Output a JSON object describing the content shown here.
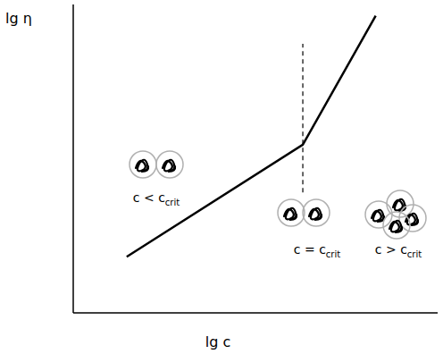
{
  "chart_data": {
    "type": "line",
    "x_label": "lg c",
    "y_label": "lg η",
    "x": [
      0.44,
      1.89,
      2.49
    ],
    "values": [
      1,
      3,
      5.3
    ],
    "color": "#000000",
    "xlim": [
      0,
      3
    ],
    "ylim": [
      0,
      5.5
    ],
    "xticks": [
      1,
      2
    ],
    "yticks": [
      1,
      2,
      3,
      4,
      5
    ],
    "tick_labels": false,
    "grid": false,
    "dashed_line": {
      "x": 1.89,
      "y": [
        2.15,
        4.8
      ]
    },
    "annotations": [
      {
        "text": "c < c",
        "subscript": "crit"
      },
      {
        "text": "c = c",
        "subscript": "crit"
      },
      {
        "text": "c > c",
        "subscript": "crit"
      }
    ]
  }
}
